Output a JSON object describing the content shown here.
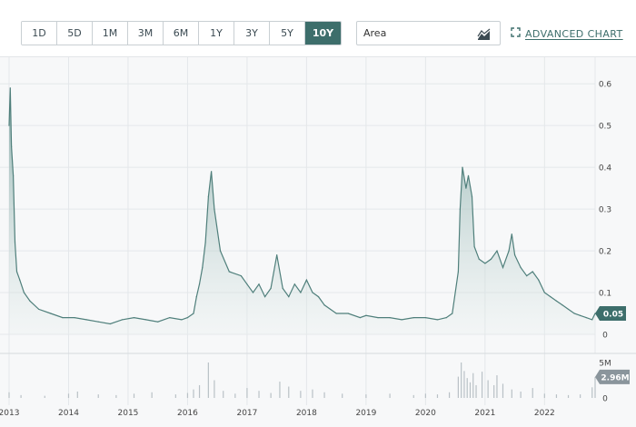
{
  "toolbar": {
    "ranges": [
      "1D",
      "5D",
      "1M",
      "3M",
      "6M",
      "1Y",
      "3Y",
      "5Y",
      "10Y"
    ],
    "active_range": "10Y",
    "chart_type_value": "Area",
    "advanced_chart_label": "ADVANCED CHART",
    "icons": {
      "chart_type": "area-chart-icon",
      "advanced": "expand-icon"
    }
  },
  "colors": {
    "accent": "#3d6e6b",
    "line": "#4f7f7b",
    "area_top": "#6f9c98",
    "volume_bar": "#b9c1c6",
    "grid": "#e4e7ea"
  },
  "last_price_badge": "0.05",
  "last_volume_badge": "2.96M",
  "chart_data": [
    {
      "type": "area",
      "title": "",
      "x_tick_labels": [
        "2013",
        "2014",
        "2015",
        "2016",
        "2017",
        "2018",
        "2019",
        "2020",
        "2021",
        "2022"
      ],
      "y_tick_labels": [
        "0",
        "0.1",
        "0.2",
        "0.3",
        "0.4",
        "0.5",
        "0.6"
      ],
      "ylim": [
        0,
        0.62
      ],
      "xlim": [
        2013.0,
        2022.85
      ],
      "grid": true,
      "series": [
        {
          "x": [
            2013.0,
            2013.02,
            2013.04,
            2013.07,
            2013.1,
            2013.13,
            2013.18,
            2013.25,
            2013.35,
            2013.5,
            2013.7,
            2013.9,
            2014.1,
            2014.3,
            2014.5,
            2014.7,
            2014.9,
            2015.1,
            2015.3,
            2015.5,
            2015.7,
            2015.9,
            2016.0,
            2016.1,
            2016.15,
            2016.2,
            2016.25,
            2016.3,
            2016.35,
            2016.4,
            2016.45,
            2016.55,
            2016.7,
            2016.9,
            2017.0,
            2017.1,
            2017.2,
            2017.3,
            2017.4,
            2017.5,
            2017.6,
            2017.7,
            2017.8,
            2017.9,
            2018.0,
            2018.1,
            2018.2,
            2018.3,
            2018.4,
            2018.5,
            2018.7,
            2018.9,
            2019.0,
            2019.2,
            2019.4,
            2019.6,
            2019.8,
            2020.0,
            2020.2,
            2020.35,
            2020.45,
            2020.55,
            2020.58,
            2020.62,
            2020.68,
            2020.72,
            2020.78,
            2020.82,
            2020.9,
            2021.0,
            2021.1,
            2021.2,
            2021.3,
            2021.4,
            2021.45,
            2021.5,
            2021.6,
            2021.7,
            2021.8,
            2021.9,
            2022.0,
            2022.1,
            2022.2,
            2022.3,
            2022.4,
            2022.5,
            2022.6,
            2022.7,
            2022.8,
            2022.85
          ],
          "values": [
            0.5,
            0.59,
            0.45,
            0.38,
            0.22,
            0.15,
            0.13,
            0.1,
            0.08,
            0.06,
            0.05,
            0.04,
            0.04,
            0.035,
            0.03,
            0.025,
            0.035,
            0.04,
            0.035,
            0.03,
            0.04,
            0.035,
            0.04,
            0.05,
            0.09,
            0.12,
            0.16,
            0.22,
            0.33,
            0.39,
            0.3,
            0.2,
            0.15,
            0.14,
            0.12,
            0.1,
            0.12,
            0.09,
            0.11,
            0.19,
            0.11,
            0.09,
            0.12,
            0.1,
            0.13,
            0.1,
            0.09,
            0.07,
            0.06,
            0.05,
            0.05,
            0.04,
            0.045,
            0.04,
            0.04,
            0.035,
            0.04,
            0.04,
            0.035,
            0.04,
            0.05,
            0.15,
            0.3,
            0.4,
            0.35,
            0.38,
            0.33,
            0.21,
            0.18,
            0.17,
            0.18,
            0.2,
            0.16,
            0.2,
            0.24,
            0.19,
            0.16,
            0.14,
            0.15,
            0.13,
            0.1,
            0.09,
            0.08,
            0.07,
            0.06,
            0.05,
            0.045,
            0.04,
            0.035,
            0.05
          ]
        }
      ]
    },
    {
      "type": "bar",
      "title": "",
      "y_tick_labels": [
        "0",
        "5M"
      ],
      "ylim": [
        0,
        5000000
      ],
      "series": [
        {
          "x": [
            2013.0,
            2013.2,
            2013.6,
            2014.0,
            2014.15,
            2014.5,
            2014.8,
            2015.1,
            2015.4,
            2015.8,
            2016.0,
            2016.1,
            2016.2,
            2016.35,
            2016.45,
            2016.6,
            2016.8,
            2017.0,
            2017.2,
            2017.4,
            2017.55,
            2017.7,
            2017.9,
            2018.1,
            2018.3,
            2018.6,
            2019.0,
            2019.4,
            2019.8,
            2020.0,
            2020.2,
            2020.4,
            2020.55,
            2020.6,
            2020.65,
            2020.7,
            2020.75,
            2020.8,
            2020.85,
            2020.95,
            2021.05,
            2021.15,
            2021.2,
            2021.3,
            2021.45,
            2021.6,
            2021.8,
            2022.0,
            2022.2,
            2022.4,
            2022.6,
            2022.8,
            2022.85
          ],
          "values": [
            800000,
            400000,
            300000,
            600000,
            900000,
            500000,
            400000,
            600000,
            800000,
            500000,
            700000,
            1200000,
            1800000,
            5200000,
            2500000,
            1000000,
            600000,
            1400000,
            1000000,
            700000,
            2300000,
            1600000,
            1000000,
            1200000,
            800000,
            600000,
            500000,
            600000,
            400000,
            600000,
            500000,
            800000,
            3000000,
            5000000,
            3800000,
            2800000,
            2200000,
            3500000,
            1800000,
            3700000,
            2500000,
            1800000,
            3200000,
            2000000,
            1200000,
            900000,
            1400000,
            600000,
            500000,
            400000,
            500000,
            1500000,
            2960000
          ]
        }
      ]
    }
  ]
}
